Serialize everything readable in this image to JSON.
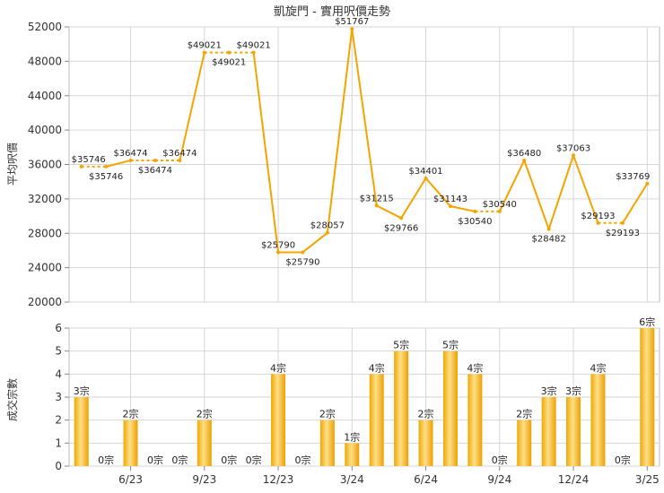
{
  "chart_data": [
    {
      "type": "line",
      "title": "凱旋門 - 實用呎價走勢",
      "ylabel": "平均呎價",
      "ylim": [
        20000,
        52000
      ],
      "yticks": [
        "52000",
        "48000",
        "44000",
        "40000",
        "36000",
        "32000",
        "28000",
        "24000",
        "20000"
      ],
      "x_ticks": [
        "6/23",
        "9/23",
        "12/23",
        "3/24",
        "6/24",
        "9/24",
        "12/24",
        "3/25"
      ],
      "points": [
        {
          "label": "$35746",
          "value": 35746
        },
        {
          "label": "$35746",
          "value": 35746
        },
        {
          "label": "$36474",
          "value": 36474
        },
        {
          "label": "$36474",
          "value": 36474
        },
        {
          "label": "$36474",
          "value": 36474
        },
        {
          "label": "$49021",
          "value": 49021
        },
        {
          "label": "$49021",
          "value": 49021
        },
        {
          "label": "$49021",
          "value": 49021
        },
        {
          "label": "$25790",
          "value": 25790
        },
        {
          "label": "$25790",
          "value": 25790
        },
        {
          "label": "$28057",
          "value": 28057
        },
        {
          "label": "$51767",
          "value": 51767
        },
        {
          "label": "$31215",
          "value": 31215
        },
        {
          "label": "$29766",
          "value": 29766
        },
        {
          "label": "$34401",
          "value": 34401
        },
        {
          "label": "$31143",
          "value": 31143
        },
        {
          "label": "$30540",
          "value": 30540
        },
        {
          "label": "$30540",
          "value": 30540
        },
        {
          "label": "$36480",
          "value": 36480
        },
        {
          "label": "$28482",
          "value": 28482
        },
        {
          "label": "$37063",
          "value": 37063
        },
        {
          "label": "$29193",
          "value": 29193
        },
        {
          "label": "$29193",
          "value": 29193
        },
        {
          "label": "$33769",
          "value": 33769
        }
      ],
      "interpolated_segments": [
        [
          0,
          1
        ],
        [
          2,
          3
        ],
        [
          3,
          4
        ],
        [
          5,
          6
        ],
        [
          6,
          7
        ],
        [
          16,
          17
        ],
        [
          21,
          22
        ]
      ],
      "series_color": "#f5a400"
    },
    {
      "type": "bar",
      "ylabel": "成交宗數",
      "ylim": [
        0,
        6
      ],
      "yticks": [
        "0",
        "1",
        "2",
        "3",
        "4",
        "5",
        "6"
      ],
      "x_ticks": [
        "6/23",
        "9/23",
        "12/23",
        "3/24",
        "6/24",
        "9/24",
        "12/24",
        "3/25"
      ],
      "values": [
        3,
        0,
        2,
        0,
        0,
        2,
        0,
        0,
        4,
        0,
        2,
        1,
        4,
        5,
        2,
        5,
        4,
        0,
        2,
        3,
        3,
        4,
        0,
        6
      ],
      "value_labels": [
        "3宗",
        "0宗",
        "2宗",
        "0宗",
        "0宗",
        "2宗",
        "0宗",
        "0宗",
        "4宗",
        "0宗",
        "2宗",
        "1宗",
        "4宗",
        "5宗",
        "2宗",
        "5宗",
        "4宗",
        "0宗",
        "2宗",
        "3宗",
        "3宗",
        "4宗",
        "0宗",
        "6宗"
      ],
      "bar_color": "#f5b400"
    }
  ]
}
